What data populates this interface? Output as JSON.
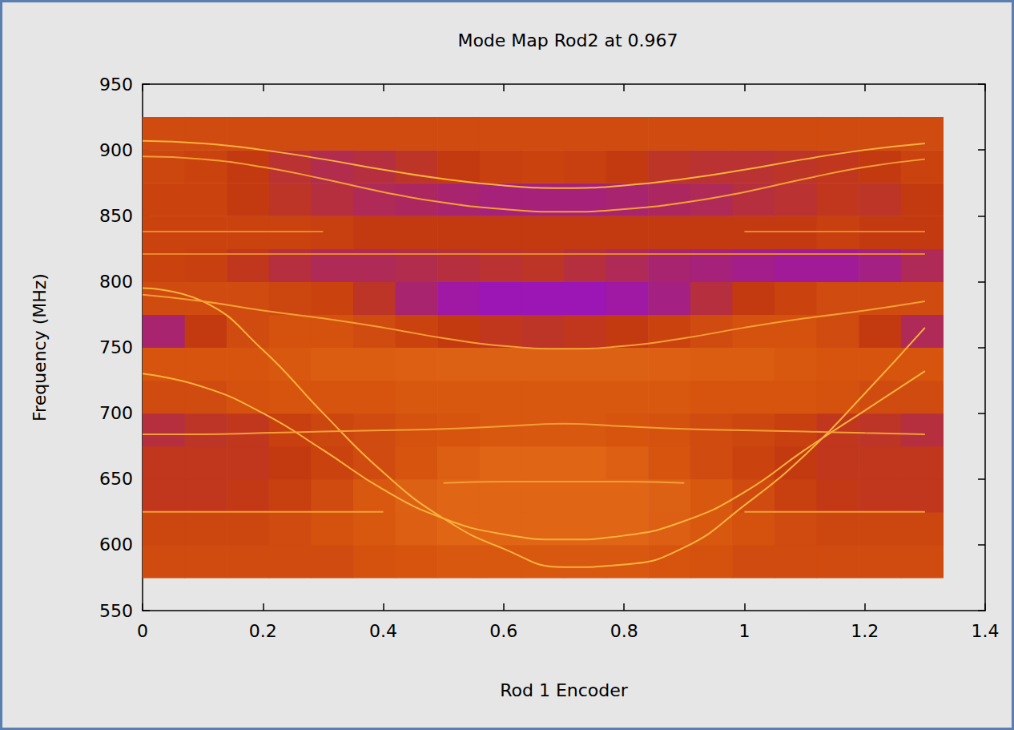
{
  "chart_data": {
    "type": "heatmap",
    "title": "Mode Map Rod2 at 0.967",
    "x_label": "Rod 1 Encoder",
    "y_label": "Frequency (MHz)",
    "xlim": [
      0,
      1.4
    ],
    "ylim": [
      550,
      950
    ],
    "xticks": [
      0,
      0.2,
      0.4,
      0.6,
      0.8,
      1,
      1.2,
      1.4
    ],
    "yticks": [
      550,
      600,
      650,
      700,
      750,
      800,
      850,
      900,
      950
    ],
    "grid": false,
    "cells": {
      "x_edges": [
        0,
        0.07,
        0.14,
        0.21,
        0.28,
        0.35,
        0.42,
        0.49,
        0.56,
        0.63,
        0.7,
        0.77,
        0.84,
        0.91,
        0.98,
        1.05,
        1.12,
        1.19,
        1.26,
        1.33
      ],
      "y_edges": [
        575,
        600,
        625,
        650,
        675,
        700,
        725,
        750,
        775,
        800,
        825,
        850,
        875,
        900,
        925
      ],
      "values": [
        [
          0.55,
          0.55,
          0.55,
          0.55,
          0.55,
          0.58,
          0.6,
          0.62,
          0.62,
          0.62,
          0.62,
          0.62,
          0.6,
          0.58,
          0.55,
          0.55,
          0.55,
          0.55,
          0.55
        ],
        [
          0.52,
          0.52,
          0.52,
          0.55,
          0.58,
          0.62,
          0.65,
          0.68,
          0.68,
          0.68,
          0.68,
          0.68,
          0.65,
          0.62,
          0.58,
          0.55,
          0.52,
          0.52,
          0.52
        ],
        [
          0.42,
          0.42,
          0.44,
          0.48,
          0.55,
          0.62,
          0.66,
          0.68,
          0.68,
          0.68,
          0.68,
          0.68,
          0.66,
          0.62,
          0.55,
          0.48,
          0.44,
          0.42,
          0.42
        ],
        [
          0.42,
          0.42,
          0.42,
          0.45,
          0.5,
          0.55,
          0.6,
          0.65,
          0.68,
          0.68,
          0.68,
          0.65,
          0.6,
          0.55,
          0.5,
          0.45,
          0.42,
          0.42,
          0.42
        ],
        [
          0.35,
          0.4,
          0.42,
          0.48,
          0.52,
          0.55,
          0.58,
          0.6,
          0.62,
          0.62,
          0.62,
          0.6,
          0.58,
          0.55,
          0.52,
          0.48,
          0.42,
          0.4,
          0.35
        ],
        [
          0.55,
          0.55,
          0.58,
          0.6,
          0.6,
          0.6,
          0.62,
          0.62,
          0.62,
          0.62,
          0.62,
          0.62,
          0.62,
          0.6,
          0.6,
          0.6,
          0.58,
          0.55,
          0.55
        ],
        [
          0.6,
          0.6,
          0.6,
          0.62,
          0.64,
          0.64,
          0.65,
          0.66,
          0.66,
          0.66,
          0.66,
          0.66,
          0.65,
          0.64,
          0.64,
          0.62,
          0.6,
          0.6,
          0.6
        ],
        [
          0.25,
          0.45,
          0.55,
          0.58,
          0.58,
          0.55,
          0.5,
          0.45,
          0.42,
          0.4,
          0.42,
          0.45,
          0.5,
          0.55,
          0.58,
          0.58,
          0.55,
          0.45,
          0.3
        ],
        [
          0.55,
          0.55,
          0.55,
          0.52,
          0.5,
          0.4,
          0.25,
          0.12,
          0.08,
          0.08,
          0.08,
          0.12,
          0.2,
          0.35,
          0.45,
          0.5,
          0.55,
          0.55,
          0.55
        ],
        [
          0.5,
          0.48,
          0.42,
          0.35,
          0.3,
          0.3,
          0.32,
          0.35,
          0.38,
          0.4,
          0.35,
          0.3,
          0.25,
          0.22,
          0.18,
          0.15,
          0.15,
          0.2,
          0.3
        ],
        [
          0.5,
          0.5,
          0.5,
          0.5,
          0.48,
          0.45,
          0.45,
          0.45,
          0.45,
          0.45,
          0.45,
          0.45,
          0.45,
          0.45,
          0.45,
          0.45,
          0.48,
          0.45,
          0.45
        ],
        [
          0.5,
          0.5,
          0.45,
          0.4,
          0.35,
          0.3,
          0.28,
          0.25,
          0.22,
          0.22,
          0.22,
          0.25,
          0.28,
          0.3,
          0.35,
          0.38,
          0.42,
          0.4,
          0.45
        ],
        [
          0.52,
          0.5,
          0.45,
          0.38,
          0.32,
          0.35,
          0.4,
          0.45,
          0.48,
          0.5,
          0.48,
          0.45,
          0.4,
          0.38,
          0.38,
          0.4,
          0.42,
          0.45,
          0.5
        ],
        [
          0.55,
          0.55,
          0.55,
          0.55,
          0.55,
          0.55,
          0.55,
          0.55,
          0.55,
          0.55,
          0.55,
          0.55,
          0.55,
          0.55,
          0.55,
          0.55,
          0.55,
          0.55,
          0.55
        ]
      ]
    },
    "x": [
      0,
      0.1,
      0.2,
      0.3,
      0.4,
      0.5,
      0.6,
      0.7,
      0.8,
      0.9,
      1,
      1.1,
      1.2,
      1.3
    ],
    "series": [
      {
        "type": "line",
        "color": "#f7b23b",
        "values": [
          795,
          785,
          748,
          700,
          655,
          620,
          597,
          583,
          585,
          598,
          630,
          668,
          715,
          765
        ]
      },
      {
        "type": "line",
        "color": "#f7b23b",
        "values": [
          730,
          720,
          700,
          672,
          642,
          620,
          608,
          604,
          607,
          618,
          640,
          672,
          702,
          732
        ]
      },
      {
        "type": "line",
        "color": "#f2a035",
        "values": [
          625,
          625,
          625,
          625,
          625,
          null,
          null,
          null,
          null,
          null,
          625,
          625,
          625,
          625
        ]
      },
      {
        "type": "line",
        "color": "#f2a035",
        "values": [
          null,
          null,
          null,
          null,
          null,
          647,
          648,
          648,
          648,
          647,
          null,
          null,
          null,
          null
        ]
      },
      {
        "type": "line",
        "color": "#f2a035",
        "values": [
          684,
          684,
          685,
          686,
          687,
          688,
          690,
          692,
          690,
          688,
          687,
          686,
          685,
          684
        ]
      },
      {
        "type": "line",
        "color": "#f2a035",
        "values": [
          790,
          785,
          778,
          772,
          765,
          757,
          751,
          749,
          751,
          757,
          765,
          772,
          778,
          785
        ]
      },
      {
        "type": "line",
        "color": "#e8892a",
        "values": [
          821,
          821,
          821,
          821,
          821,
          821,
          821,
          821,
          821,
          821,
          821,
          821,
          821,
          821
        ]
      },
      {
        "type": "line",
        "color": "#e8892a",
        "values": [
          838,
          838,
          838,
          838,
          null,
          null,
          null,
          null,
          null,
          null,
          838,
          838,
          838,
          838
        ]
      },
      {
        "type": "line",
        "color": "#f7b23b",
        "values": [
          907,
          905,
          900,
          893,
          885,
          878,
          873,
          871,
          873,
          878,
          885,
          893,
          900,
          905
        ]
      },
      {
        "type": "line",
        "color": "#f2a035",
        "values": [
          895,
          893,
          887,
          878,
          868,
          860,
          855,
          853,
          855,
          860,
          868,
          878,
          887,
          893
        ]
      }
    ]
  }
}
